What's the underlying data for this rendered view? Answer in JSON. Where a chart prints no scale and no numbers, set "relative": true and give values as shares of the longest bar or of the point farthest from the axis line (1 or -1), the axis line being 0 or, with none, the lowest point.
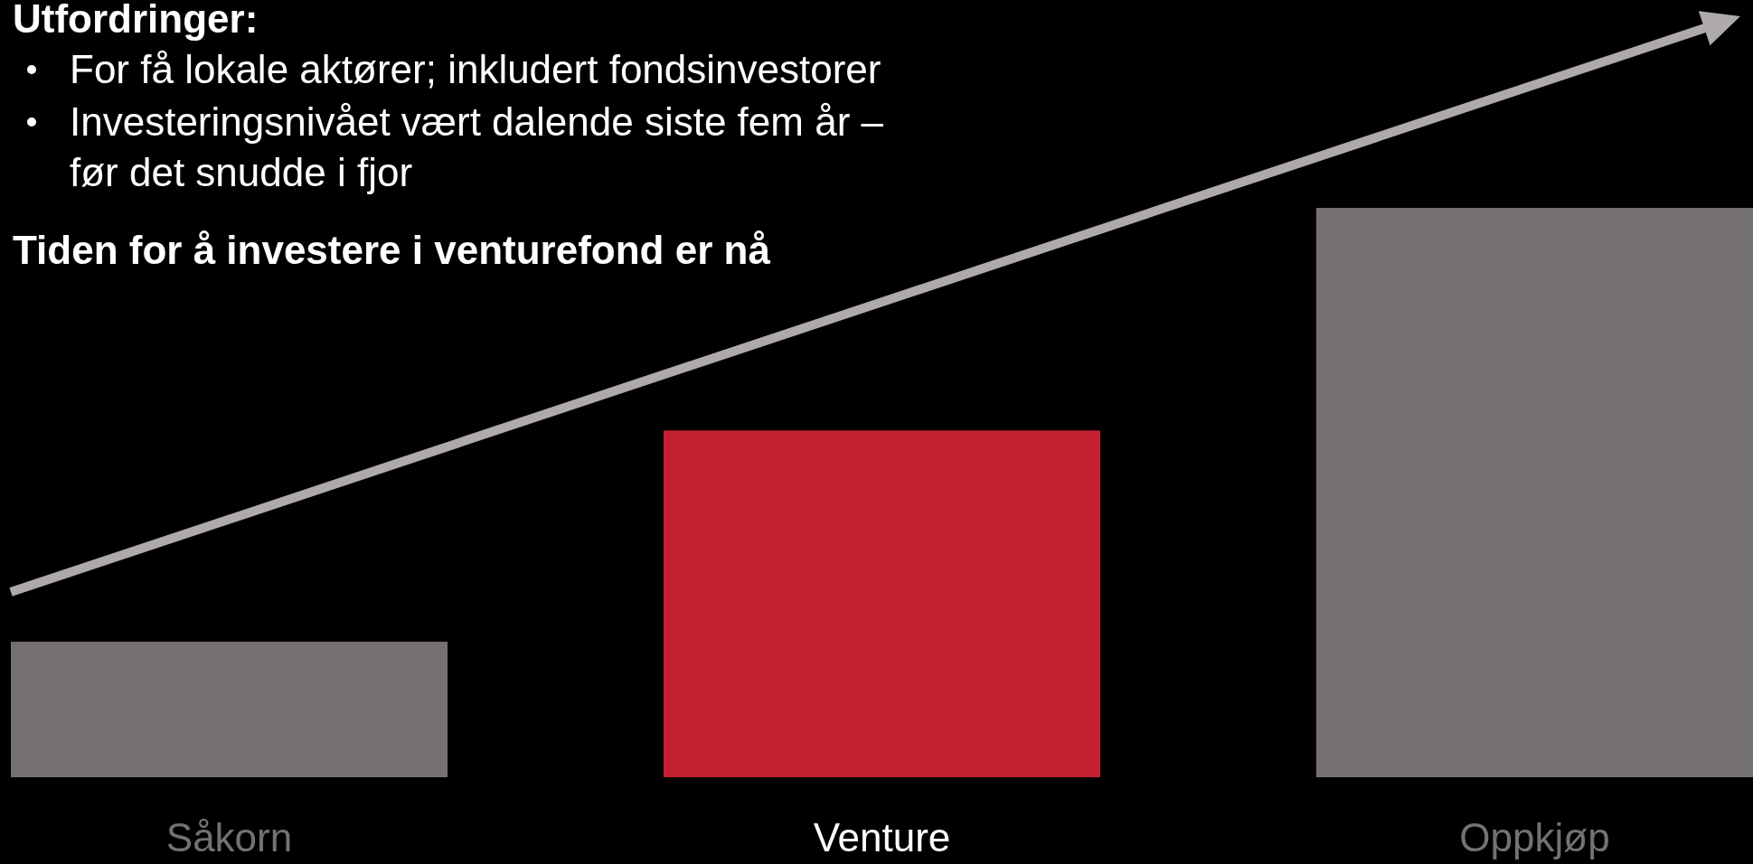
{
  "chart_data": {
    "type": "bar",
    "relative": true,
    "title": "Utfordringer:",
    "annotations": [
      "For få lokale aktører; inkludert fondsinvestorer",
      "Investeringsnivået vært dalende siste fem år – før det snudde i fjor",
      "Tiden for å investere i venturefond er nå"
    ],
    "categories": [
      "Såkorn",
      "Venture",
      "Oppkjøp"
    ],
    "values": [
      0.238,
      0.609,
      1
    ],
    "colors": [
      "#767171",
      "#c32032",
      "#767171"
    ]
  }
}
